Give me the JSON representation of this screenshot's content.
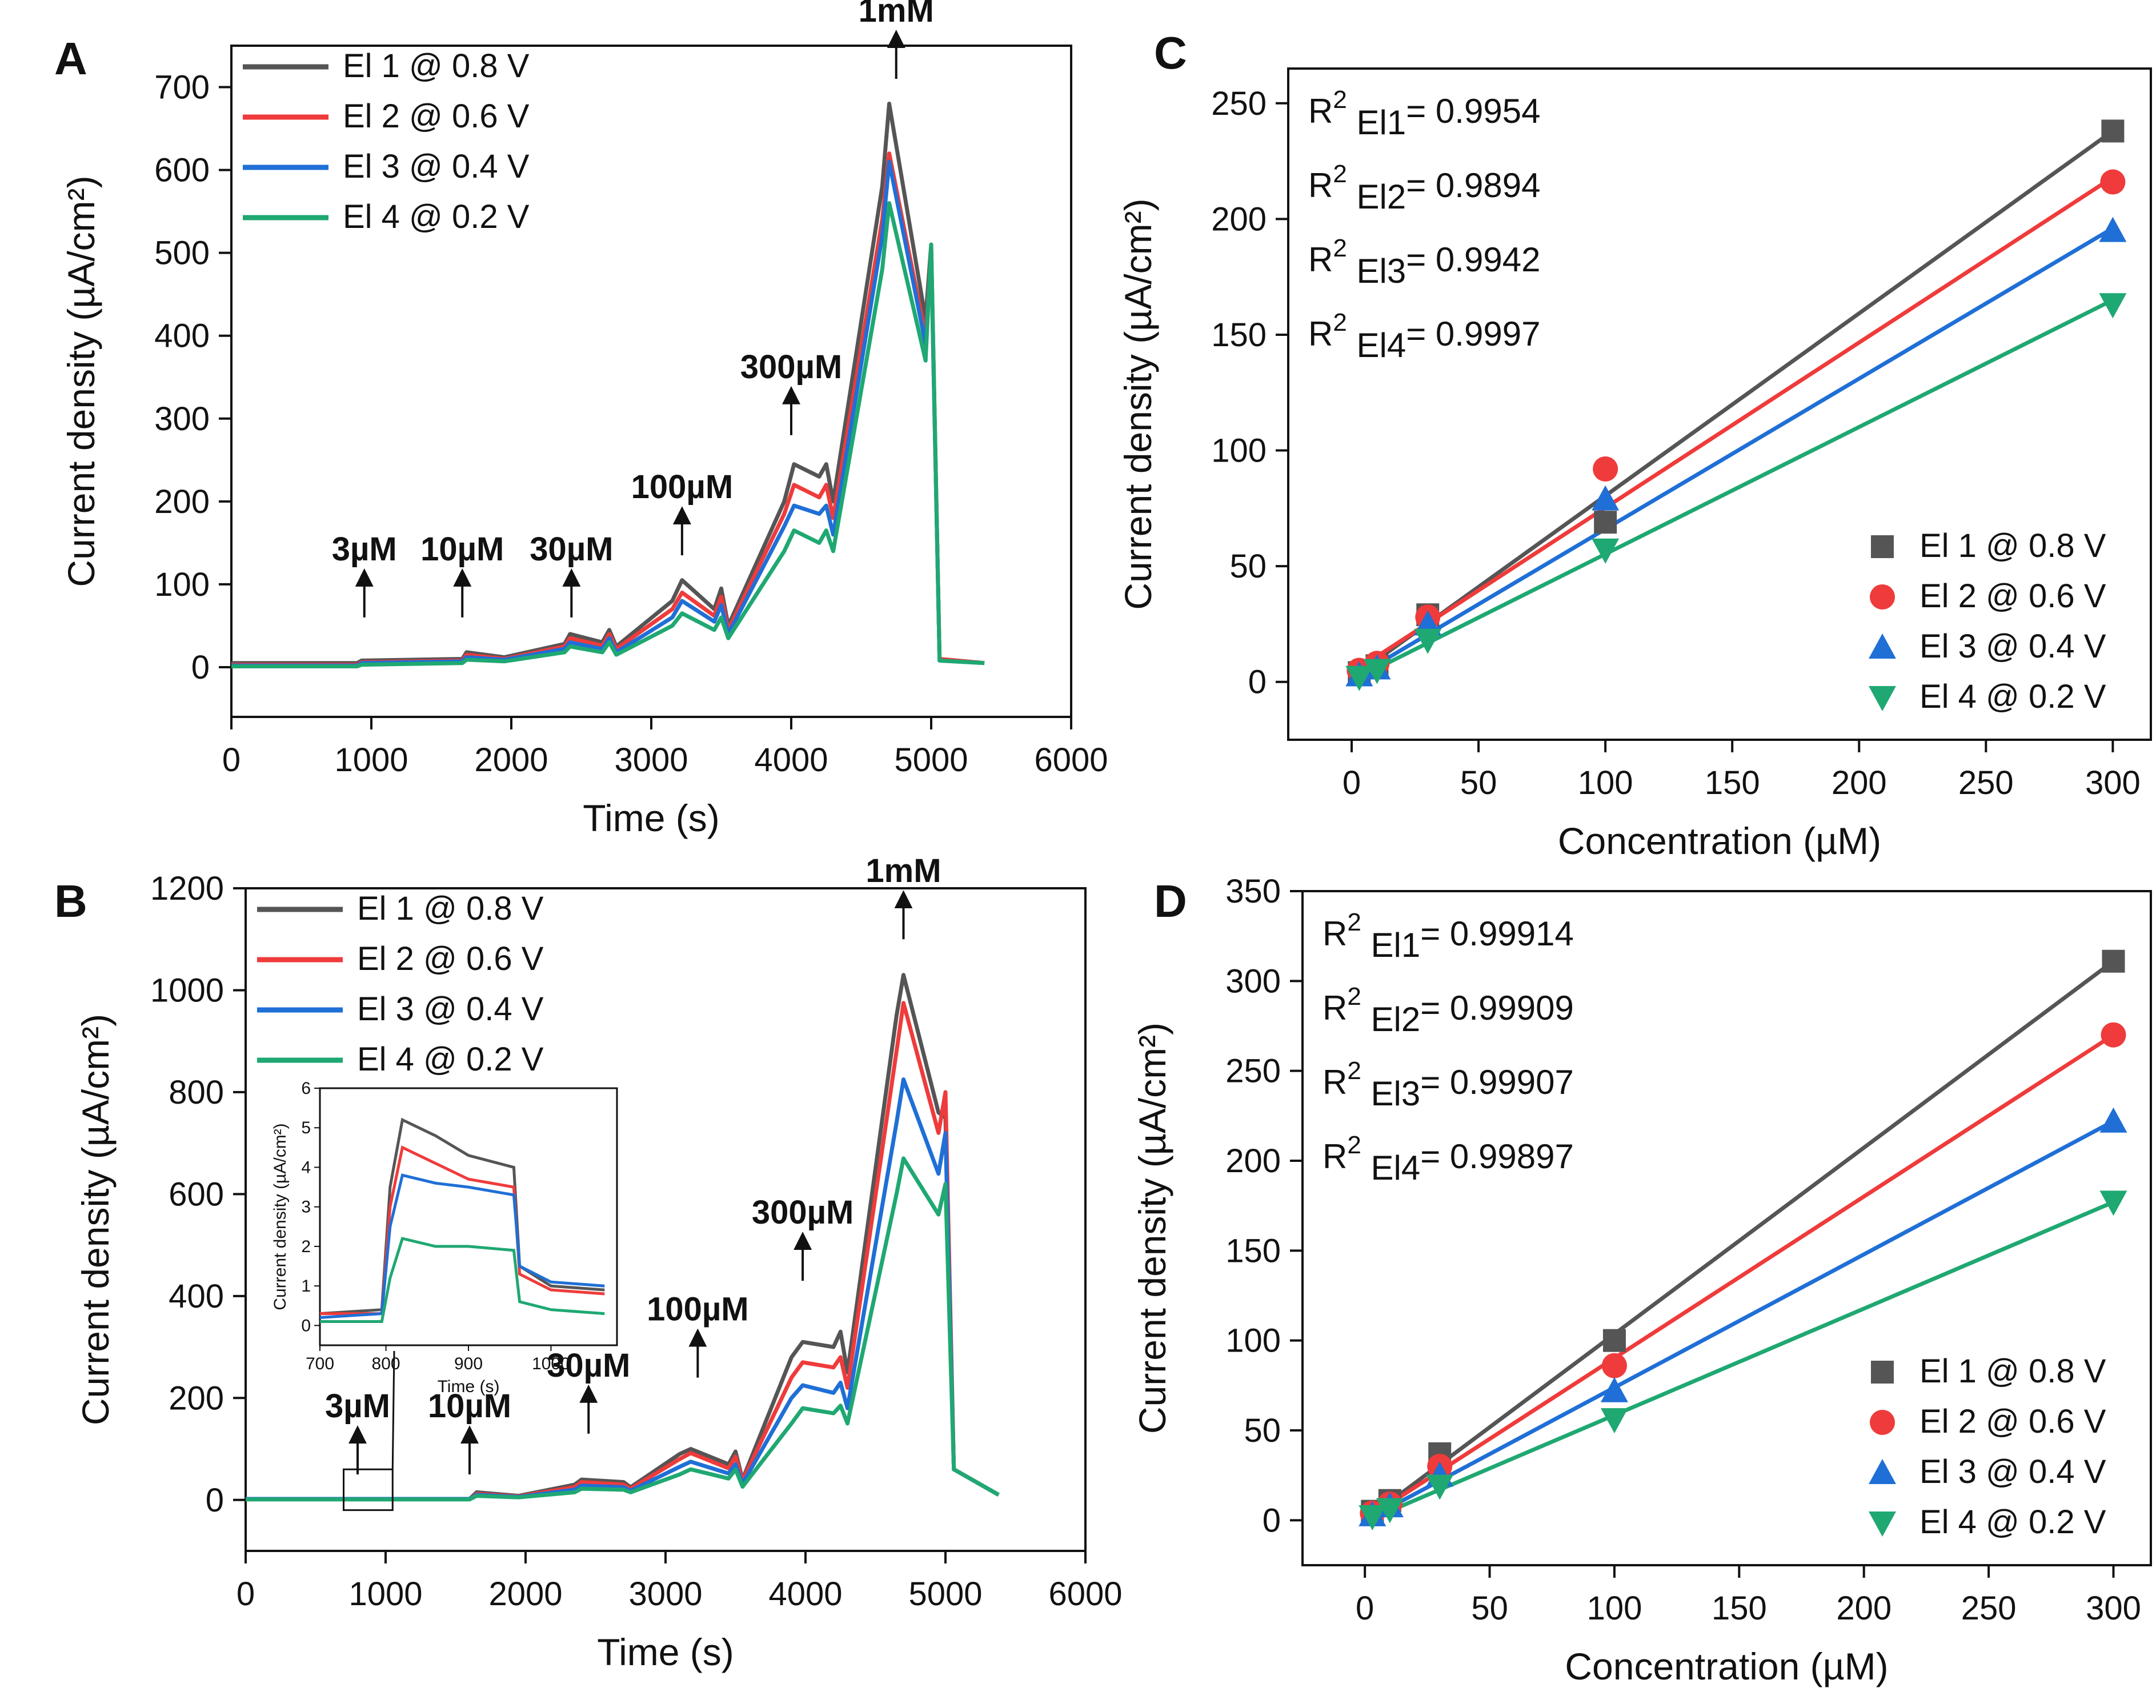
{
  "figure": {
    "series_names": [
      "El 1 @ 0.8 V",
      "El 2 @ 0.6 V",
      "El 3 @ 0.4 V",
      "El 4 @ 0.2 V"
    ],
    "colors": [
      "#555555",
      "#ef3b3b",
      "#1f6fd6",
      "#1fa872"
    ]
  },
  "chart_data": [
    {
      "id": "A",
      "panel_label": "A",
      "type": "line",
      "title": "",
      "xlabel": "Time (s)",
      "ylabel": "Current density (µA/cm²)",
      "xlim": [
        0,
        6000
      ],
      "ylim": [
        -60,
        750
      ],
      "xticks": [
        0,
        1000,
        2000,
        3000,
        4000,
        5000,
        6000
      ],
      "yticks": [
        0,
        100,
        200,
        300,
        400,
        500,
        600,
        700
      ],
      "legend": "top-left",
      "series": [
        {
          "name": "El 1 @ 0.8 V",
          "color": "#555555",
          "x": [
            0,
            900,
            930,
            1650,
            1680,
            1950,
            2380,
            2420,
            2650,
            2700,
            2750,
            3150,
            3220,
            3450,
            3500,
            3550,
            3950,
            4020,
            4200,
            4250,
            4300,
            4650,
            4700,
            4960,
            5000,
            5060,
            5380
          ],
          "y": [
            5,
            5,
            8,
            10,
            18,
            12,
            28,
            40,
            30,
            45,
            25,
            80,
            105,
            70,
            95,
            50,
            200,
            245,
            230,
            245,
            200,
            580,
            680,
            420,
            510,
            10,
            5
          ]
        },
        {
          "name": "El 2 @ 0.6 V",
          "color": "#ef3b3b",
          "x": [
            0,
            900,
            930,
            1650,
            1680,
            1950,
            2380,
            2420,
            2650,
            2700,
            2750,
            3150,
            3220,
            3450,
            3500,
            3550,
            3950,
            4020,
            4200,
            4250,
            4300,
            4650,
            4700,
            4960,
            5000,
            5060,
            5380
          ],
          "y": [
            3,
            3,
            6,
            8,
            15,
            10,
            25,
            35,
            26,
            40,
            22,
            70,
            90,
            62,
            85,
            45,
            185,
            220,
            205,
            220,
            180,
            540,
            620,
            400,
            500,
            10,
            5
          ]
        },
        {
          "name": "El 3 @ 0.4 V",
          "color": "#1f6fd6",
          "x": [
            0,
            900,
            930,
            1650,
            1680,
            1950,
            2380,
            2420,
            2650,
            2700,
            2750,
            3150,
            3220,
            3450,
            3500,
            3550,
            3950,
            4020,
            4200,
            4250,
            4300,
            4650,
            4700,
            4960,
            5000,
            5060,
            5380
          ],
          "y": [
            2,
            2,
            5,
            7,
            12,
            9,
            22,
            30,
            22,
            35,
            18,
            60,
            80,
            55,
            75,
            40,
            170,
            195,
            185,
            195,
            160,
            520,
            610,
            390,
            500,
            8,
            5
          ]
        },
        {
          "name": "El 4 @ 0.2 V",
          "color": "#1fa872",
          "x": [
            0,
            900,
            930,
            1650,
            1680,
            1950,
            2380,
            2420,
            2650,
            2700,
            2750,
            3150,
            3220,
            3450,
            3500,
            3550,
            3950,
            4020,
            4200,
            4250,
            4300,
            4650,
            4700,
            4960,
            5000,
            5060,
            5380
          ],
          "y": [
            1,
            1,
            3,
            5,
            9,
            7,
            18,
            25,
            18,
            30,
            15,
            50,
            65,
            45,
            60,
            35,
            140,
            165,
            150,
            165,
            140,
            480,
            560,
            370,
            510,
            8,
            5
          ]
        }
      ],
      "annotations": [
        {
          "text": "3µM",
          "x": 950,
          "y": 60
        },
        {
          "text": "10µM",
          "x": 1650,
          "y": 60
        },
        {
          "text": "30µM",
          "x": 2430,
          "y": 60
        },
        {
          "text": "100µM",
          "x": 3220,
          "y": 135
        },
        {
          "text": "300µM",
          "x": 4000,
          "y": 280
        },
        {
          "text": "1mM",
          "x": 4750,
          "y": 710
        }
      ]
    },
    {
      "id": "B",
      "panel_label": "B",
      "type": "line",
      "title": "",
      "xlabel": "Time (s)",
      "ylabel": "Current density (µA/cm²)",
      "xlim": [
        0,
        6000
      ],
      "ylim": [
        -100,
        1200
      ],
      "xticks": [
        0,
        1000,
        2000,
        3000,
        4000,
        5000,
        6000
      ],
      "yticks": [
        0,
        200,
        400,
        600,
        800,
        1000,
        1200
      ],
      "legend": "top-left",
      "series": [
        {
          "name": "El 1 @ 0.8 V",
          "color": "#555555",
          "x": [
            0,
            1600,
            1650,
            1950,
            2350,
            2400,
            2700,
            2750,
            3100,
            3180,
            3450,
            3500,
            3550,
            3900,
            3980,
            4200,
            4250,
            4300,
            4650,
            4700,
            4950,
            5000,
            5060,
            5380
          ],
          "y": [
            2,
            2,
            15,
            8,
            30,
            40,
            35,
            25,
            90,
            100,
            70,
            95,
            40,
            280,
            310,
            300,
            330,
            250,
            950,
            1030,
            760,
            750,
            60,
            10
          ]
        },
        {
          "name": "El 2 @ 0.6 V",
          "color": "#ef3b3b",
          "x": [
            0,
            1600,
            1650,
            1950,
            2350,
            2400,
            2700,
            2750,
            3100,
            3180,
            3450,
            3500,
            3550,
            3900,
            3980,
            4200,
            4250,
            4300,
            4650,
            4700,
            4950,
            5000,
            5060,
            5380
          ],
          "y": [
            2,
            2,
            12,
            7,
            25,
            35,
            30,
            22,
            80,
            92,
            62,
            85,
            38,
            240,
            270,
            260,
            280,
            220,
            880,
            975,
            720,
            800,
            60,
            10
          ]
        },
        {
          "name": "El 3 @ 0.4 V",
          "color": "#1f6fd6",
          "x": [
            0,
            1600,
            1650,
            1950,
            2350,
            2400,
            2700,
            2750,
            3100,
            3180,
            3450,
            3500,
            3550,
            3900,
            3980,
            4200,
            4250,
            4300,
            4650,
            4700,
            4950,
            5000,
            5060,
            5380
          ],
          "y": [
            2,
            2,
            10,
            6,
            20,
            28,
            25,
            18,
            65,
            75,
            52,
            70,
            32,
            200,
            225,
            210,
            230,
            180,
            740,
            825,
            640,
            720,
            60,
            10
          ]
        },
        {
          "name": "El 4 @ 0.2 V",
          "color": "#1fa872",
          "x": [
            0,
            1600,
            1650,
            1950,
            2350,
            2400,
            2700,
            2750,
            3100,
            3180,
            3450,
            3500,
            3550,
            3900,
            3980,
            4200,
            4250,
            4300,
            4650,
            4700,
            4950,
            5000,
            5060,
            5380
          ],
          "y": [
            1,
            1,
            8,
            5,
            15,
            22,
            20,
            15,
            50,
            60,
            42,
            60,
            26,
            150,
            180,
            170,
            185,
            150,
            600,
            670,
            560,
            620,
            60,
            10
          ]
        }
      ],
      "annotations": [
        {
          "text": "3µM",
          "x": 800,
          "y": 50
        },
        {
          "text": "10µM",
          "x": 1600,
          "y": 50
        },
        {
          "text": "30µM",
          "x": 2450,
          "y": 130
        },
        {
          "text": "100µM",
          "x": 3230,
          "y": 240
        },
        {
          "text": "300µM",
          "x": 3980,
          "y": 430
        },
        {
          "text": "1mM",
          "x": 4700,
          "y": 1100
        }
      ],
      "inset": {
        "type": "line",
        "xlabel": "Time (s)",
        "ylabel": "Current density (µA/cm²)",
        "xlim": [
          720,
          1080
        ],
        "ylim": [
          -0.5,
          6
        ],
        "xticks": [
          700,
          800,
          900,
          1000
        ],
        "yticks": [
          0,
          1,
          2,
          3,
          4,
          5,
          6
        ],
        "series": [
          {
            "name": "El 1 @ 0.8 V",
            "x": [
              720,
              795,
              805,
              820,
              860,
              900,
              955,
              962,
              1000,
              1065
            ],
            "y": [
              0.3,
              0.4,
              3.5,
              5.2,
              4.8,
              4.3,
              4.0,
              1.5,
              1.0,
              0.9
            ]
          },
          {
            "name": "El 2 @ 0.6 V",
            "x": [
              720,
              795,
              805,
              820,
              860,
              900,
              955,
              962,
              1000,
              1065
            ],
            "y": [
              0.3,
              0.3,
              3.0,
              4.5,
              4.1,
              3.7,
              3.5,
              1.3,
              0.9,
              0.8
            ]
          },
          {
            "name": "El 3 @ 0.4 V",
            "x": [
              720,
              795,
              805,
              820,
              860,
              900,
              955,
              962,
              1000,
              1065
            ],
            "y": [
              0.2,
              0.3,
              2.5,
              3.8,
              3.6,
              3.5,
              3.3,
              1.5,
              1.1,
              1.0
            ]
          },
          {
            "name": "El 4 @ 0.2 V",
            "x": [
              720,
              795,
              805,
              820,
              860,
              900,
              955,
              962,
              1000,
              1065
            ],
            "y": [
              0.1,
              0.1,
              1.2,
              2.2,
              2.0,
              2.0,
              1.9,
              0.6,
              0.4,
              0.3
            ]
          }
        ]
      }
    },
    {
      "id": "C",
      "panel_label": "C",
      "type": "scatter",
      "title": "",
      "xlabel": "Concentration (µM)",
      "ylabel": "Current density (µA/cm²)",
      "xlim": [
        -25,
        315
      ],
      "ylim": [
        -25,
        265
      ],
      "xticks": [
        0,
        50,
        100,
        150,
        200,
        250,
        300
      ],
      "yticks": [
        0,
        50,
        100,
        150,
        200,
        250
      ],
      "legend": "bottom-right",
      "r2_prefix": "R",
      "r2_sup": "2",
      "r2": [
        {
          "label": "El1",
          "value": "= 0.9954"
        },
        {
          "label": "El2",
          "value": "= 0.9894"
        },
        {
          "label": "El3",
          "value": "= 0.9942"
        },
        {
          "label": "El4",
          "value": "= 0.9997"
        }
      ],
      "x": [
        3,
        10,
        30,
        100,
        300
      ],
      "series": [
        {
          "name": "El 1 @ 0.8 V",
          "color": "#555555",
          "marker": "square",
          "values": [
            4,
            7,
            29,
            69,
            238
          ],
          "fit": [
            4,
            238
          ]
        },
        {
          "name": "El 2 @ 0.6 V",
          "color": "#ef3b3b",
          "marker": "circle",
          "values": [
            5,
            8,
            28,
            92,
            216
          ],
          "fit": [
            6,
            218
          ]
        },
        {
          "name": "El 3 @ 0.4 V",
          "color": "#1f6fd6",
          "marker": "triangle-up",
          "values": [
            3,
            6,
            25,
            79,
            195
          ],
          "fit": [
            3,
            196
          ]
        },
        {
          "name": "El 4 @ 0.2 V",
          "color": "#1fa872",
          "marker": "triangle-down",
          "values": [
            2,
            5,
            18,
            57,
            163
          ],
          "fit": [
            2,
            165
          ]
        }
      ]
    },
    {
      "id": "D",
      "panel_label": "D",
      "type": "scatter",
      "title": "",
      "xlabel": "Concentration (µM)",
      "ylabel": "Current density (µA/cm²)",
      "xlim": [
        -25,
        315
      ],
      "ylim": [
        -25,
        350
      ],
      "xticks": [
        0,
        50,
        100,
        150,
        200,
        250,
        300
      ],
      "yticks": [
        0,
        50,
        100,
        150,
        200,
        250,
        300,
        350
      ],
      "legend": "bottom-right",
      "r2_prefix": "R",
      "r2_sup": "2",
      "r2": [
        {
          "label": "El1",
          "value": "= 0.99914"
        },
        {
          "label": "El2",
          "value": "= 0.99909"
        },
        {
          "label": "El3",
          "value": "= 0.99907"
        },
        {
          "label": "El4",
          "value": "= 0.99897"
        }
      ],
      "x": [
        3,
        10,
        30,
        100,
        300
      ],
      "series": [
        {
          "name": "El 1 @ 0.8 V",
          "color": "#555555",
          "marker": "square",
          "values": [
            5,
            11,
            37,
            100,
            311
          ],
          "fit": [
            3,
            311
          ]
        },
        {
          "name": "El 2 @ 0.6 V",
          "color": "#ef3b3b",
          "marker": "circle",
          "values": [
            4,
            9,
            30,
            86,
            270
          ],
          "fit": [
            3,
            270
          ]
        },
        {
          "name": "El 3 @ 0.4 V",
          "color": "#1f6fd6",
          "marker": "triangle-up",
          "values": [
            3,
            8,
            25,
            72,
            222
          ],
          "fit": [
            2,
            222
          ]
        },
        {
          "name": "El 4 @ 0.2 V",
          "color": "#1fa872",
          "marker": "triangle-down",
          "values": [
            2,
            6,
            19,
            56,
            177
          ],
          "fit": [
            1,
            177
          ]
        }
      ]
    }
  ]
}
